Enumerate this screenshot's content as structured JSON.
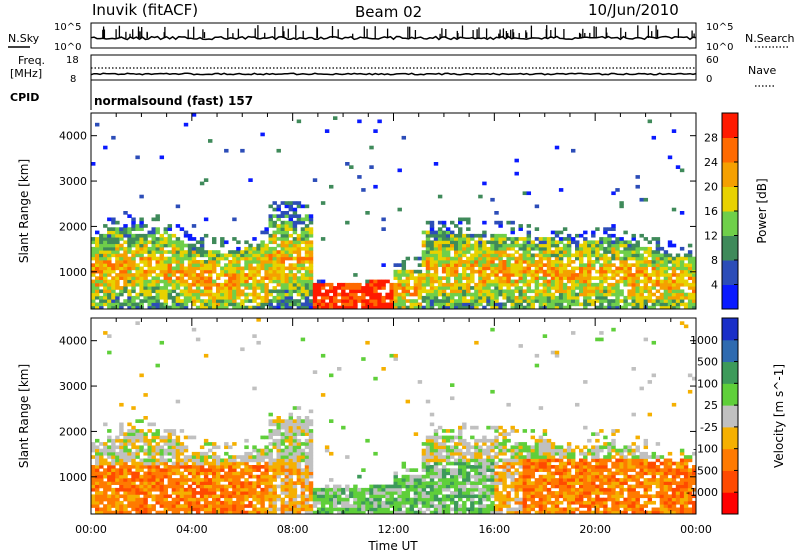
{
  "header": {
    "station": "Inuvik (fitACF)",
    "beam": "Beam 02",
    "date": "10/Jun/2010"
  },
  "noise_panel": {
    "left_label": "N.Sky",
    "right_label": "N.Search",
    "left_ticks": [
      "10^5",
      "10^0"
    ],
    "right_ticks": [
      "10^5",
      "10^0"
    ]
  },
  "freq_panel": {
    "left_label_1": "Freq.",
    "left_label_2": "[MHz]",
    "right_label": "Nave",
    "left_ticks": [
      "18",
      "8"
    ],
    "right_ticks": [
      "60",
      "0"
    ],
    "cpid_label": "CPID"
  },
  "cpid_text": "normalsound (fast) 157",
  "chart_data": [
    {
      "type": "heatmap",
      "title": "",
      "quantity": "Power",
      "xlabel": "",
      "ylabel": "Slant Range [km]",
      "x_ticks": [
        "00:00",
        "04:00",
        "08:00",
        "12:00",
        "16:00",
        "20:00",
        "00:00"
      ],
      "x_range_hours": [
        0,
        24
      ],
      "y_ticks": [
        1000,
        2000,
        3000,
        4000
      ],
      "y_range_km": [
        180,
        4500
      ],
      "colorbar": {
        "label": "Power [dB]",
        "ticks": [
          "4",
          "8",
          "12",
          "16",
          "20",
          "24",
          "28"
        ],
        "colors": [
          "#0a1aff",
          "#2c4db8",
          "#3f8a5a",
          "#6fcf4a",
          "#e8d200",
          "#f5a000",
          "#ff6a00",
          "#ff1a00"
        ]
      }
    },
    {
      "type": "heatmap",
      "title": "",
      "quantity": "Velocity",
      "xlabel": "Time UT",
      "ylabel": "Slant Range [km]",
      "x_ticks": [
        "00:00",
        "04:00",
        "08:00",
        "12:00",
        "16:00",
        "20:00",
        "00:00"
      ],
      "x_range_hours": [
        0,
        24
      ],
      "y_ticks": [
        1000,
        2000,
        3000,
        4000
      ],
      "y_range_km": [
        180,
        4500
      ],
      "colorbar": {
        "label": "Velocity [m s^-1]",
        "ticks": [
          "1000",
          "500",
          "100",
          "25",
          "-25",
          "-100",
          "-500",
          "-1000"
        ],
        "colors": [
          "#1a2fc8",
          "#2f6bb0",
          "#3d9a5a",
          "#5fcf3a",
          "#c0c0c0",
          "#f5b000",
          "#ff7a00",
          "#ff4a00",
          "#ff0000"
        ]
      }
    }
  ]
}
